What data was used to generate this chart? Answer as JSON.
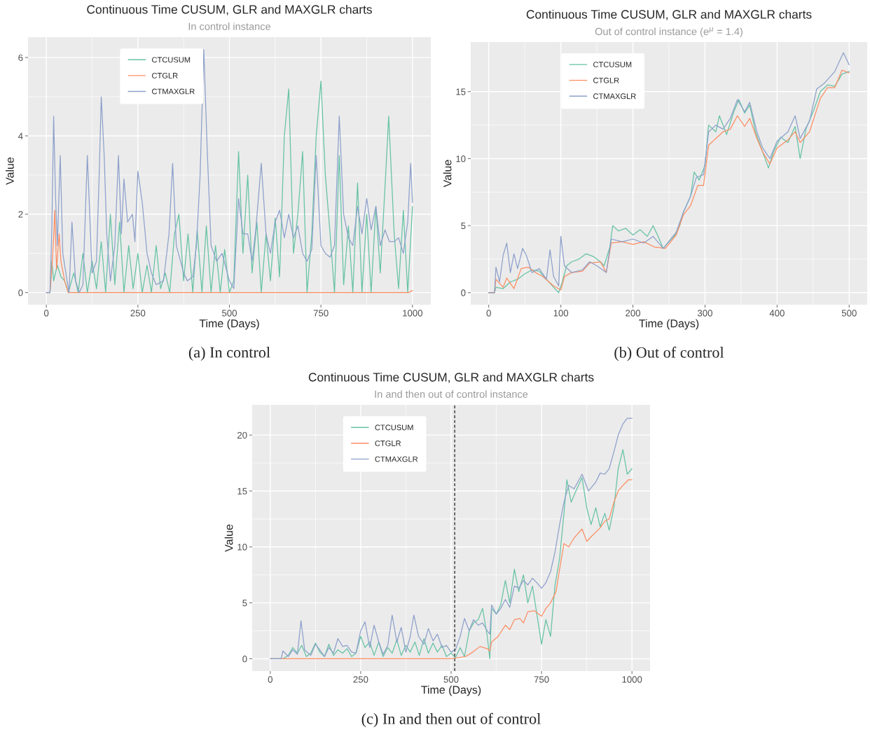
{
  "chart_data": [
    {
      "type": "line",
      "title": "Continuous Time CUSUM, GLR and MAXGLR charts",
      "subtitle": "In control instance",
      "xlabel": "Time (Days)",
      "ylabel": "Value",
      "annotations": [
        "(a) In control"
      ],
      "xlim": [
        -50,
        1050
      ],
      "ylim": [
        -0.31,
        6.52
      ],
      "xticks": [
        0,
        250,
        500,
        750,
        1000
      ],
      "yticks": [
        0,
        2,
        4,
        6
      ],
      "grid": true,
      "legend": "top left",
      "line_style": "solid",
      "series": [
        {
          "name": "CTCUSUM",
          "color": "#66c2a5",
          "x": [
            0,
            10,
            15,
            20,
            30,
            40,
            50,
            60,
            75,
            87,
            100,
            112,
            125,
            137,
            150,
            162,
            175,
            187,
            200,
            212,
            225,
            237,
            250,
            262,
            275,
            287,
            300,
            312,
            325,
            337,
            350,
            362,
            375,
            387,
            400,
            412,
            425,
            437,
            450,
            462,
            475,
            487,
            500,
            512,
            525,
            537,
            550,
            562,
            575,
            587,
            600,
            612,
            625,
            637,
            650,
            662,
            675,
            687,
            700,
            712,
            725,
            737,
            750,
            762,
            775,
            787,
            800,
            812,
            825,
            837,
            850,
            862,
            875,
            887,
            900,
            912,
            925,
            935,
            950,
            962,
            975,
            987,
            1000
          ],
          "values": [
            0,
            0,
            0.8,
            0.3,
            0.7,
            0.4,
            0.3,
            0,
            0.5,
            0,
            1.0,
            0,
            0.8,
            0.1,
            1.3,
            0,
            2.0,
            0.2,
            1.8,
            0,
            1.2,
            0.1,
            1.0,
            0,
            0.7,
            0,
            1.2,
            0.1,
            0.5,
            0,
            1.5,
            2.0,
            0.3,
            1.5,
            0,
            1.6,
            0,
            1.7,
            0,
            1.2,
            0,
            1.1,
            0,
            0.3,
            3.6,
            1.0,
            3.0,
            0.5,
            1.8,
            0,
            1.5,
            0.3,
            1.9,
            0.4,
            4.0,
            5.2,
            1.0,
            2.0,
            3.6,
            0,
            1.5,
            4.0,
            5.4,
            3.0,
            1.5,
            0,
            3.5,
            0.2,
            1.7,
            0,
            2.8,
            0,
            2.0,
            0,
            2.2,
            0.5,
            2.7,
            4.5,
            1.5,
            0.1,
            2.1,
            0,
            2.2
          ]
        },
        {
          "name": "CTGLR",
          "color": "#fc8d62",
          "x": [
            0,
            10,
            15,
            20,
            23,
            28,
            35,
            40,
            50,
            60,
            990,
            1000
          ],
          "values": [
            0,
            0,
            0.6,
            1.4,
            2.1,
            0.6,
            1.5,
            0.8,
            0.3,
            0,
            0,
            0.05
          ]
        },
        {
          "name": "CTMAXGLR",
          "color": "#8da0cb",
          "x": [
            0,
            10,
            15,
            20,
            25,
            30,
            38,
            45,
            55,
            62,
            70,
            80,
            90,
            100,
            112,
            125,
            137,
            145,
            150,
            158,
            165,
            175,
            187,
            197,
            205,
            212,
            222,
            235,
            242,
            250,
            262,
            275,
            287,
            300,
            320,
            335,
            345,
            355,
            375,
            385,
            400,
            410,
            420,
            430,
            440,
            450,
            465,
            480,
            500,
            512,
            525,
            537,
            550,
            562,
            572,
            587,
            600,
            612,
            625,
            637,
            650,
            662,
            675,
            687,
            700,
            712,
            725,
            737,
            750,
            762,
            775,
            787,
            800,
            812,
            825,
            837,
            850,
            862,
            875,
            887,
            900,
            912,
            925,
            937,
            950,
            962,
            975,
            987,
            995,
            1000
          ],
          "values": [
            0,
            0,
            1.6,
            4.5,
            2.5,
            1.2,
            3.5,
            1.0,
            0.4,
            0,
            1.8,
            0.3,
            0,
            0.2,
            3.5,
            0.5,
            0.8,
            3.2,
            5.0,
            3.5,
            1.5,
            0.3,
            1.2,
            3.5,
            1.5,
            2.9,
            1.8,
            2.0,
            1.3,
            3.1,
            2.3,
            1.0,
            0.5,
            0.2,
            0.3,
            1.5,
            3.3,
            1.2,
            0.5,
            0.3,
            0.4,
            1.2,
            3.0,
            6.2,
            3.5,
            1.2,
            0.8,
            1.0,
            0.3,
            0.1,
            2.4,
            1.5,
            1.5,
            0.8,
            1.6,
            3.3,
            1.5,
            1.0,
            1.8,
            2.1,
            1.4,
            2.0,
            1.4,
            1.7,
            1.0,
            0.8,
            1.1,
            3.5,
            1.2,
            1.0,
            0.9,
            1.2,
            4.5,
            2.0,
            1.4,
            1.2,
            2.2,
            1.5,
            2.4,
            1.6,
            2.2,
            1.2,
            1.6,
            1.3,
            1.3,
            1.4,
            1.0,
            1.8,
            3.3,
            2.3
          ]
        }
      ]
    },
    {
      "type": "line",
      "title": "Continuous Time CUSUM, GLR and MAXGLR charts",
      "subtitle": "Out of control instance (e$^{μ}$ = 1.4)",
      "xlabel": "Time (Days)",
      "ylabel": "Value",
      "annotations": [
        "(b) Out of control"
      ],
      "xlim": [
        -25,
        525
      ],
      "ylim": [
        -0.9,
        18.7
      ],
      "xticks": [
        0,
        100,
        200,
        300,
        400,
        500
      ],
      "yticks": [
        0,
        5,
        10,
        15
      ],
      "grid": true,
      "legend": "top left",
      "line_style": "solid",
      "series": [
        {
          "name": "CTCUSUM",
          "color": "#66c2a5",
          "x": [
            0,
            8,
            10,
            20,
            30,
            40,
            50,
            60,
            70,
            80,
            90,
            97,
            102,
            108,
            115,
            125,
            135,
            145,
            155,
            160,
            168,
            172,
            180,
            190,
            200,
            210,
            220,
            228,
            235,
            242,
            250,
            260,
            265,
            270,
            280,
            285,
            292,
            300,
            305,
            315,
            320,
            330,
            340,
            347,
            355,
            362,
            370,
            380,
            388,
            395,
            405,
            415,
            425,
            432,
            440,
            450,
            460,
            470,
            480,
            490,
            500
          ],
          "values": [
            0,
            0,
            0.4,
            0.3,
            0.8,
            1.0,
            1.4,
            1.7,
            1.6,
            1.0,
            0.4,
            0,
            0.8,
            2.0,
            2.3,
            2.5,
            2.9,
            2.7,
            2.3,
            2.0,
            3.4,
            5.0,
            4.6,
            4.8,
            4.3,
            4.7,
            4.2,
            5.0,
            4.2,
            3.3,
            3.8,
            4.4,
            5.0,
            6.0,
            7.2,
            9.0,
            8.4,
            9.5,
            12.5,
            12.0,
            13.2,
            11.8,
            13.5,
            14.4,
            13.4,
            14.0,
            12.0,
            10.5,
            9.3,
            10.5,
            11.6,
            11.2,
            12.4,
            10.0,
            12.2,
            13.5,
            15.0,
            15.5,
            15.4,
            16.3,
            16.5
          ]
        },
        {
          "name": "CTGLR",
          "color": "#fc8d62",
          "x": [
            0,
            8,
            10,
            20,
            25,
            35,
            45,
            55,
            65,
            75,
            90,
            100,
            105,
            115,
            130,
            140,
            155,
            163,
            170,
            185,
            200,
            215,
            230,
            245,
            260,
            270,
            280,
            290,
            298,
            305,
            315,
            325,
            335,
            345,
            355,
            362,
            372,
            380,
            390,
            400,
            415,
            425,
            432,
            445,
            460,
            470,
            480,
            490,
            500
          ],
          "values": [
            0,
            0,
            1.0,
            0.4,
            1.1,
            0.3,
            1.8,
            1.9,
            1.5,
            1.2,
            0.5,
            0.2,
            1.2,
            1.5,
            1.6,
            2.2,
            2.3,
            1.5,
            3.7,
            3.8,
            3.6,
            3.8,
            3.4,
            3.3,
            4.3,
            5.8,
            6.5,
            8.0,
            8.0,
            11.0,
            11.5,
            12.0,
            12.2,
            13.2,
            12.4,
            13.0,
            11.5,
            10.5,
            9.6,
            10.8,
            11.4,
            12.0,
            11.2,
            12.0,
            14.5,
            15.3,
            15.3,
            16.6,
            16.4
          ]
        },
        {
          "name": "CTMAXGLR",
          "color": "#8da0cb",
          "x": [
            0,
            8,
            10,
            15,
            20,
            25,
            30,
            35,
            40,
            47,
            52,
            60,
            70,
            80,
            85,
            90,
            97,
            100,
            105,
            115,
            130,
            140,
            150,
            163,
            170,
            185,
            200,
            215,
            228,
            242,
            260,
            270,
            280,
            288,
            298,
            305,
            315,
            325,
            335,
            345,
            355,
            362,
            372,
            380,
            390,
            400,
            415,
            425,
            432,
            445,
            455,
            465,
            480,
            492,
            500
          ],
          "values": [
            0,
            0,
            1.9,
            0.8,
            2.8,
            3.7,
            1.5,
            2.9,
            1.8,
            3.3,
            2.8,
            1.5,
            1.8,
            1.0,
            3.2,
            1.2,
            0.5,
            4.2,
            2.0,
            1.5,
            1.7,
            2.3,
            2.0,
            1.5,
            4.0,
            3.8,
            4.0,
            3.7,
            4.2,
            3.3,
            4.5,
            6.0,
            7.2,
            8.6,
            8.8,
            12.0,
            12.5,
            12.2,
            13.0,
            14.4,
            13.5,
            14.2,
            12.0,
            10.8,
            10.0,
            11.3,
            12.0,
            13.2,
            11.5,
            12.8,
            15.2,
            15.6,
            16.5,
            17.9,
            17.0
          ]
        }
      ]
    },
    {
      "type": "line",
      "title": "Continuous Time CUSUM, GLR and MAXGLR charts",
      "subtitle": "In and then out of control instance",
      "xlabel": "Time (Days)",
      "ylabel": "Value",
      "annotations": [
        "(c) In and then out of control"
      ],
      "xlim": [
        -50,
        1050
      ],
      "ylim": [
        -1.1,
        22.7
      ],
      "xticks": [
        0,
        250,
        500,
        750,
        1000
      ],
      "yticks": [
        0,
        5,
        10,
        15,
        20
      ],
      "grid": true,
      "legend": "top left",
      "line_style": "solid",
      "ref_lines": [
        {
          "axis": "x",
          "value": 510,
          "color": "#333333",
          "line_style": "dashed"
        }
      ],
      "series": [
        {
          "name": "CTCUSUM",
          "color": "#66c2a5",
          "x": [
            0,
            35,
            50,
            62,
            75,
            87,
            100,
            112,
            125,
            137,
            150,
            162,
            175,
            187,
            200,
            212,
            225,
            237,
            250,
            262,
            275,
            287,
            300,
            312,
            325,
            337,
            350,
            362,
            375,
            387,
            400,
            412,
            425,
            437,
            450,
            462,
            475,
            487,
            500,
            512,
            525,
            537,
            550,
            562,
            575,
            587,
            600,
            607,
            612,
            625,
            637,
            650,
            662,
            675,
            687,
            700,
            712,
            725,
            737,
            750,
            762,
            775,
            787,
            800,
            812,
            820,
            832,
            845,
            862,
            875,
            887,
            900,
            912,
            925,
            937,
            950,
            962,
            975,
            987,
            1000
          ],
          "values": [
            0,
            0,
            0.3,
            1.0,
            0.5,
            1.2,
            0.2,
            0.5,
            1.4,
            0.6,
            0.2,
            1.3,
            0.3,
            0.8,
            0.5,
            0.9,
            0.2,
            0.5,
            2.0,
            1.0,
            1.5,
            0.3,
            1.5,
            0.2,
            1.0,
            0.5,
            1.7,
            0.3,
            1.2,
            0.6,
            1.5,
            0.3,
            1.8,
            0.5,
            1.4,
            0.6,
            1.2,
            0.2,
            0.5,
            0.1,
            1.0,
            0.2,
            2.5,
            3.2,
            3.5,
            4.5,
            2.0,
            0,
            4.5,
            4.0,
            4.8,
            7.0,
            5.0,
            8.0,
            6.0,
            7.5,
            5.0,
            6.5,
            4.0,
            1.3,
            3.5,
            2.0,
            6.5,
            9.0,
            13.0,
            16.0,
            14.0,
            15.0,
            16.2,
            13.5,
            12.0,
            13.5,
            11.8,
            13.0,
            11.5,
            13.5,
            17.0,
            18.7,
            16.5,
            17.0
          ]
        },
        {
          "name": "CTGLR",
          "color": "#fc8d62",
          "x": [
            0,
            500,
            540,
            560,
            580,
            600,
            607,
            612,
            630,
            650,
            662,
            675,
            690,
            700,
            712,
            730,
            750,
            762,
            775,
            790,
            800,
            812,
            825,
            840,
            862,
            875,
            890,
            912,
            925,
            937,
            950,
            962,
            975,
            990,
            1000
          ],
          "values": [
            0,
            0,
            0.2,
            0.6,
            1.1,
            0.9,
            0.7,
            1.5,
            2.0,
            3.0,
            2.6,
            3.5,
            3.6,
            3.2,
            4.2,
            4.3,
            3.8,
            4.5,
            5.0,
            6.0,
            8.0,
            10.3,
            10.0,
            10.8,
            11.6,
            10.5,
            11.0,
            11.7,
            12.3,
            12.5,
            14.0,
            15.0,
            15.5,
            16.0,
            16.0
          ]
        },
        {
          "name": "CTMAXGLR",
          "color": "#8da0cb",
          "x": [
            0,
            30,
            35,
            50,
            62,
            75,
            85,
            95,
            112,
            125,
            137,
            150,
            162,
            175,
            187,
            200,
            212,
            225,
            237,
            250,
            262,
            275,
            287,
            300,
            312,
            325,
            337,
            350,
            362,
            375,
            387,
            397,
            410,
            425,
            437,
            450,
            462,
            475,
            487,
            500,
            512,
            525,
            537,
            550,
            562,
            575,
            587,
            600,
            607,
            612,
            625,
            637,
            650,
            662,
            675,
            687,
            700,
            712,
            725,
            737,
            750,
            762,
            775,
            787,
            800,
            812,
            825,
            840,
            862,
            880,
            900,
            912,
            925,
            937,
            950,
            962,
            975,
            987,
            1000
          ],
          "values": [
            0,
            0,
            0.7,
            0.2,
            0.8,
            0.4,
            3.4,
            0.8,
            0.3,
            1.3,
            0.8,
            0.2,
            1.0,
            0.5,
            1.8,
            1.1,
            1.2,
            0.6,
            0.5,
            2.5,
            3.3,
            1.0,
            3.0,
            1.5,
            0.4,
            1.2,
            3.9,
            1.5,
            2.8,
            0.6,
            2.0,
            3.9,
            2.0,
            1.3,
            2.7,
            1.6,
            2.2,
            1.0,
            1.2,
            0.6,
            0.8,
            2.0,
            3.6,
            2.5,
            3.5,
            3.0,
            3.2,
            2.5,
            2.2,
            4.8,
            4.0,
            4.5,
            5.3,
            4.6,
            6.5,
            6.3,
            7.0,
            6.6,
            7.2,
            6.8,
            6.3,
            6.8,
            7.8,
            9.5,
            12.0,
            14.0,
            15.5,
            15.2,
            16.5,
            15.0,
            15.8,
            16.6,
            16.5,
            17.0,
            18.5,
            20.0,
            21.0,
            21.5,
            21.5
          ]
        }
      ]
    }
  ]
}
